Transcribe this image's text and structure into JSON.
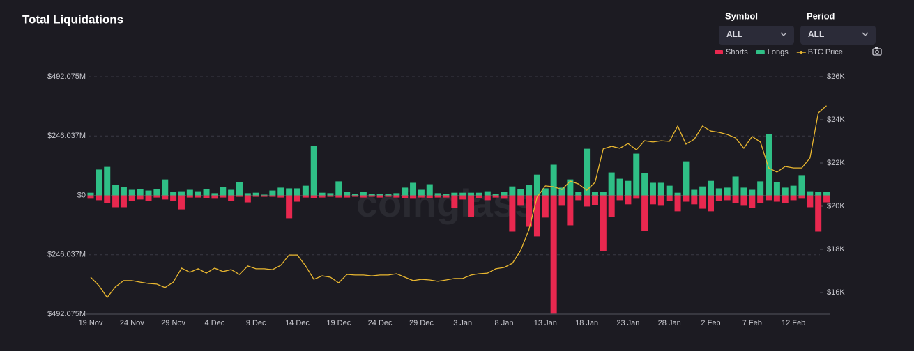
{
  "chart_data": {
    "type": "bar",
    "title": "Total Liquidations",
    "controls": [
      {
        "label": "Symbol",
        "value": "ALL"
      },
      {
        "label": "Period",
        "value": "ALL"
      }
    ],
    "watermark": "coinglass",
    "categories": [
      "19 Nov",
      null,
      null,
      null,
      null,
      "24 Nov",
      null,
      null,
      null,
      null,
      "29 Nov",
      null,
      null,
      null,
      null,
      "4 Dec",
      null,
      null,
      null,
      null,
      "9 Dec",
      null,
      null,
      null,
      null,
      "14 Dec",
      null,
      null,
      null,
      null,
      "19 Dec",
      null,
      null,
      null,
      null,
      "24 Dec",
      null,
      null,
      null,
      null,
      "29 Dec",
      null,
      null,
      null,
      null,
      "3 Jan",
      null,
      null,
      null,
      null,
      "8 Jan",
      null,
      null,
      null,
      null,
      "13 Jan",
      null,
      null,
      null,
      null,
      "18 Jan",
      null,
      null,
      null,
      null,
      "23 Jan",
      null,
      null,
      null,
      null,
      "28 Jan",
      null,
      null,
      null,
      null,
      "2 Feb",
      null,
      null,
      null,
      null,
      "7 Feb",
      null,
      null,
      null,
      null,
      "12 Feb",
      null,
      null,
      null,
      null
    ],
    "series": [
      {
        "name": "Shorts",
        "type": "bar",
        "color": "#e8284f",
        "values": [
          -14,
          -20,
          -32,
          -49,
          -49,
          -23,
          -17,
          -23,
          -9,
          -17,
          -23,
          -58,
          -9,
          -9,
          -12,
          -14,
          -9,
          -23,
          -6,
          -29,
          -6,
          -6,
          -6,
          -9,
          -95,
          -26,
          -9,
          -12,
          -9,
          -6,
          -9,
          -9,
          -6,
          -9,
          -6,
          -9,
          -6,
          -9,
          -12,
          -14,
          -9,
          -12,
          -9,
          -9,
          -52,
          -17,
          -89,
          -12,
          -20,
          -9,
          -14,
          -150,
          -43,
          -130,
          -170,
          -92,
          -490,
          -43,
          -124,
          -20,
          -46,
          -40,
          -230,
          -89,
          -20,
          -37,
          -14,
          -147,
          -37,
          -43,
          -23,
          -66,
          -26,
          -37,
          -55,
          -66,
          -23,
          -20,
          -32,
          -43,
          -52,
          -32,
          -20,
          -26,
          -32,
          -20,
          -14,
          -49,
          -150,
          -29
        ]
      },
      {
        "name": "Longs",
        "type": "bar",
        "color": "#2fbf86",
        "values": [
          11,
          107,
          118,
          43,
          35,
          23,
          26,
          20,
          26,
          66,
          14,
          17,
          23,
          17,
          26,
          9,
          35,
          23,
          55,
          9,
          11,
          3,
          20,
          32,
          29,
          29,
          40,
          205,
          11,
          9,
          58,
          14,
          6,
          14,
          6,
          6,
          6,
          9,
          32,
          52,
          23,
          46,
          9,
          6,
          11,
          11,
          11,
          11,
          17,
          6,
          14,
          37,
          26,
          43,
          86,
          29,
          127,
          32,
          66,
          14,
          193,
          14,
          14,
          95,
          69,
          60,
          173,
          92,
          52,
          52,
          40,
          11,
          141,
          23,
          37,
          60,
          29,
          32,
          78,
          32,
          23,
          58,
          254,
          55,
          32,
          40,
          84,
          17,
          14,
          14
        ]
      },
      {
        "name": "BTC Price",
        "type": "line",
        "axis": "y2",
        "color": "#e9b730",
        "values": [
          16710,
          16320,
          15770,
          16260,
          16550,
          16550,
          16480,
          16420,
          16390,
          16230,
          16480,
          17130,
          16940,
          17100,
          16900,
          17130,
          16970,
          17060,
          16840,
          17230,
          17100,
          17100,
          17060,
          17260,
          17740,
          17740,
          17230,
          16610,
          16770,
          16710,
          16450,
          16840,
          16810,
          16810,
          16770,
          16810,
          16810,
          16870,
          16710,
          16550,
          16610,
          16580,
          16520,
          16580,
          16650,
          16650,
          16810,
          16870,
          16900,
          17100,
          17160,
          17350,
          17940,
          18900,
          20420,
          20940,
          20900,
          20770,
          21160,
          21030,
          20740,
          21100,
          22650,
          22770,
          22680,
          22900,
          22610,
          23030,
          22970,
          23030,
          23000,
          23710,
          22870,
          23100,
          23710,
          23480,
          23420,
          23320,
          23160,
          22680,
          23230,
          22970,
          21770,
          21580,
          21840,
          21770,
          21770,
          22230,
          24320,
          24650
        ]
      }
    ],
    "ylim": [
      -492.075,
      492.075
    ],
    "yticks": [
      {
        "value": 492.075,
        "label": "$492.075M"
      },
      {
        "value": 246.037,
        "label": "$246.037M"
      },
      {
        "value": 0,
        "label": "$0"
      },
      {
        "value": -246.037,
        "label": "$246.037M"
      },
      {
        "value": -492.075,
        "label": "$492.075M"
      }
    ],
    "y2lim": [
      15000,
      26000
    ],
    "y2ticks": [
      {
        "value": 16000,
        "label": "$16K"
      },
      {
        "value": 18000,
        "label": "$18K"
      },
      {
        "value": 20000,
        "label": "$20K"
      },
      {
        "value": 22000,
        "label": "$22K"
      },
      {
        "value": 24000,
        "label": "$24K"
      },
      {
        "value": 26000,
        "label": "$26K"
      }
    ],
    "grid": true,
    "legend": "top-right"
  }
}
